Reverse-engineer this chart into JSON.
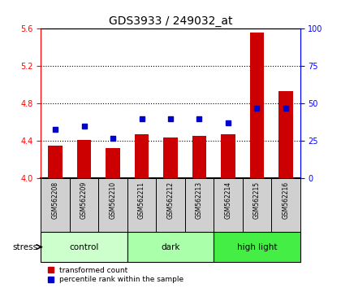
{
  "title": "GDS3933 / 249032_at",
  "samples": [
    "GSM562208",
    "GSM562209",
    "GSM562210",
    "GSM562211",
    "GSM562212",
    "GSM562213",
    "GSM562214",
    "GSM562215",
    "GSM562216"
  ],
  "transformed_counts": [
    4.35,
    4.41,
    4.33,
    4.47,
    4.44,
    4.46,
    4.47,
    5.56,
    4.93
  ],
  "percentile_ranks": [
    33,
    35,
    27,
    40,
    40,
    40,
    37,
    47,
    47
  ],
  "bar_bottom": 4.0,
  "ylim_left": [
    4.0,
    5.6
  ],
  "ylim_right": [
    0,
    100
  ],
  "yticks_left": [
    4.0,
    4.4,
    4.8,
    5.2,
    5.6
  ],
  "yticks_right": [
    0,
    25,
    50,
    75,
    100
  ],
  "bar_color": "#cc0000",
  "dot_color": "#0000cc",
  "groups": [
    {
      "label": "control",
      "start": 0,
      "end": 3,
      "color": "#ccffcc"
    },
    {
      "label": "dark",
      "start": 3,
      "end": 6,
      "color": "#aaffaa"
    },
    {
      "label": "high light",
      "start": 6,
      "end": 9,
      "color": "#44ee44"
    }
  ],
  "stress_label": "stress",
  "legend_red": "transformed count",
  "legend_blue": "percentile rank within the sample",
  "plot_bg_color": "#ffffff",
  "label_area_color": "#d0d0d0",
  "fig_bg_color": "#ffffff"
}
